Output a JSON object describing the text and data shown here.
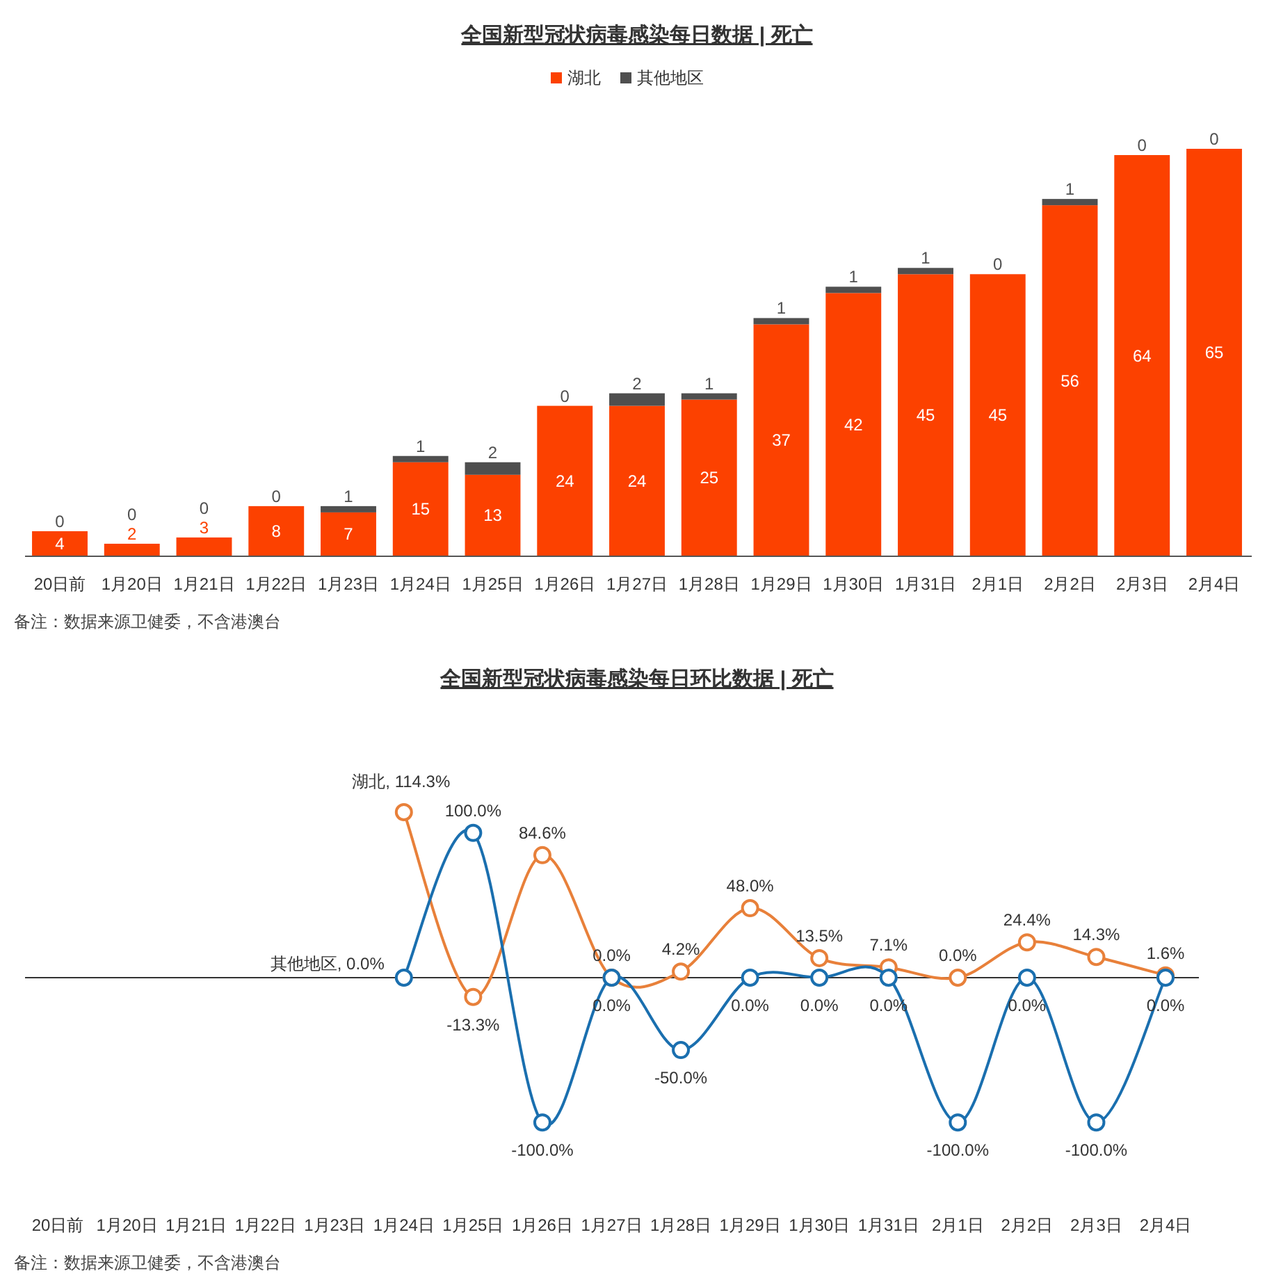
{
  "chart_data": [
    {
      "type": "bar",
      "title": "全国新型冠状病毒感染每日数据 | 死亡",
      "categories": [
        "20日前",
        "1月20日",
        "1月21日",
        "1月22日",
        "1月23日",
        "1月24日",
        "1月25日",
        "1月26日",
        "1月27日",
        "1月28日",
        "1月29日",
        "1月30日",
        "1月31日",
        "2月1日",
        "2月2日",
        "2月3日",
        "2月4日"
      ],
      "stacked": true,
      "data_labels": true,
      "legend": "top",
      "series": [
        {
          "name": "湖北",
          "color": "#fc4100",
          "values": [
            4,
            2,
            3,
            8,
            7,
            15,
            13,
            24,
            24,
            25,
            37,
            42,
            45,
            45,
            56,
            64,
            65
          ]
        },
        {
          "name": "其他地区",
          "color": "#4f4f4f",
          "values": [
            0,
            0,
            0,
            0,
            1,
            1,
            2,
            0,
            2,
            1,
            1,
            1,
            1,
            0,
            1,
            0,
            0
          ]
        }
      ],
      "annotations": [
        "备注：数据来源卫健委，不含港澳台"
      ]
    },
    {
      "type": "line",
      "title": "全国新型冠状病毒感染每日环比数据 | 死亡",
      "categories": [
        "20日前",
        "1月20日",
        "1月21日",
        "1月22日",
        "1月23日",
        "1月24日",
        "1月25日",
        "1月26日",
        "1月27日",
        "1月28日",
        "1月29日",
        "1月30日",
        "1月31日",
        "2月1日",
        "2月2日",
        "2月3日",
        "2月4日"
      ],
      "marker": "circle",
      "legend": false,
      "series": [
        {
          "color": "#e8803a",
          "values": [
            null,
            null,
            null,
            null,
            null,
            114.3,
            -13.3,
            84.6,
            0.0,
            4.2,
            48.0,
            13.5,
            7.1,
            0.0,
            24.4,
            14.3,
            1.6
          ],
          "value_labels": [
            null,
            null,
            null,
            null,
            null,
            "湖北, 114.3%",
            "-13.3%",
            "84.6%",
            "0.0%",
            "4.2%",
            "48.0%",
            "13.5%",
            "7.1%",
            "0.0%",
            "24.4%",
            "14.3%",
            "1.6%"
          ]
        },
        {
          "color": "#1a6faf",
          "values": [
            null,
            null,
            null,
            null,
            null,
            0.0,
            100.0,
            -100.0,
            0.0,
            -50.0,
            0.0,
            0.0,
            0.0,
            -100.0,
            0.0,
            -100.0,
            0.0
          ],
          "value_labels": [
            null,
            null,
            null,
            null,
            null,
            "其他地区, 0.0%",
            "100.0%",
            "-100.0%",
            "0.0%",
            "-50.0%",
            "0.0%",
            "0.0%",
            "0.0%",
            "-100.0%",
            "0.0%",
            "-100.0%",
            "0.0%"
          ]
        }
      ],
      "annotations": [
        "备注：数据来源卫健委，不含港澳台"
      ]
    }
  ]
}
